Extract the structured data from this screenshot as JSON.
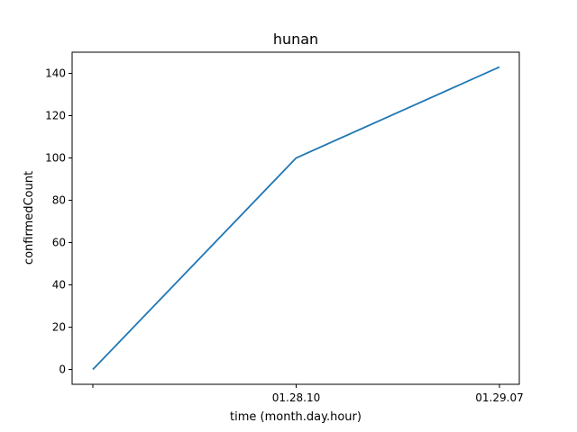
{
  "chart_data": {
    "type": "line",
    "title": "hunan",
    "xlabel": "time (month.day.hour)",
    "ylabel": "confirmedCount",
    "categories": [
      "",
      "01.28.10",
      "01.29.07"
    ],
    "series": [
      {
        "values": [
          0,
          100,
          143
        ],
        "color": "#1f77b4"
      }
    ],
    "ylim": [
      -7,
      150
    ],
    "yticks": [
      0,
      20,
      40,
      60,
      80,
      100,
      120,
      140
    ],
    "grid": false,
    "legend": false
  }
}
